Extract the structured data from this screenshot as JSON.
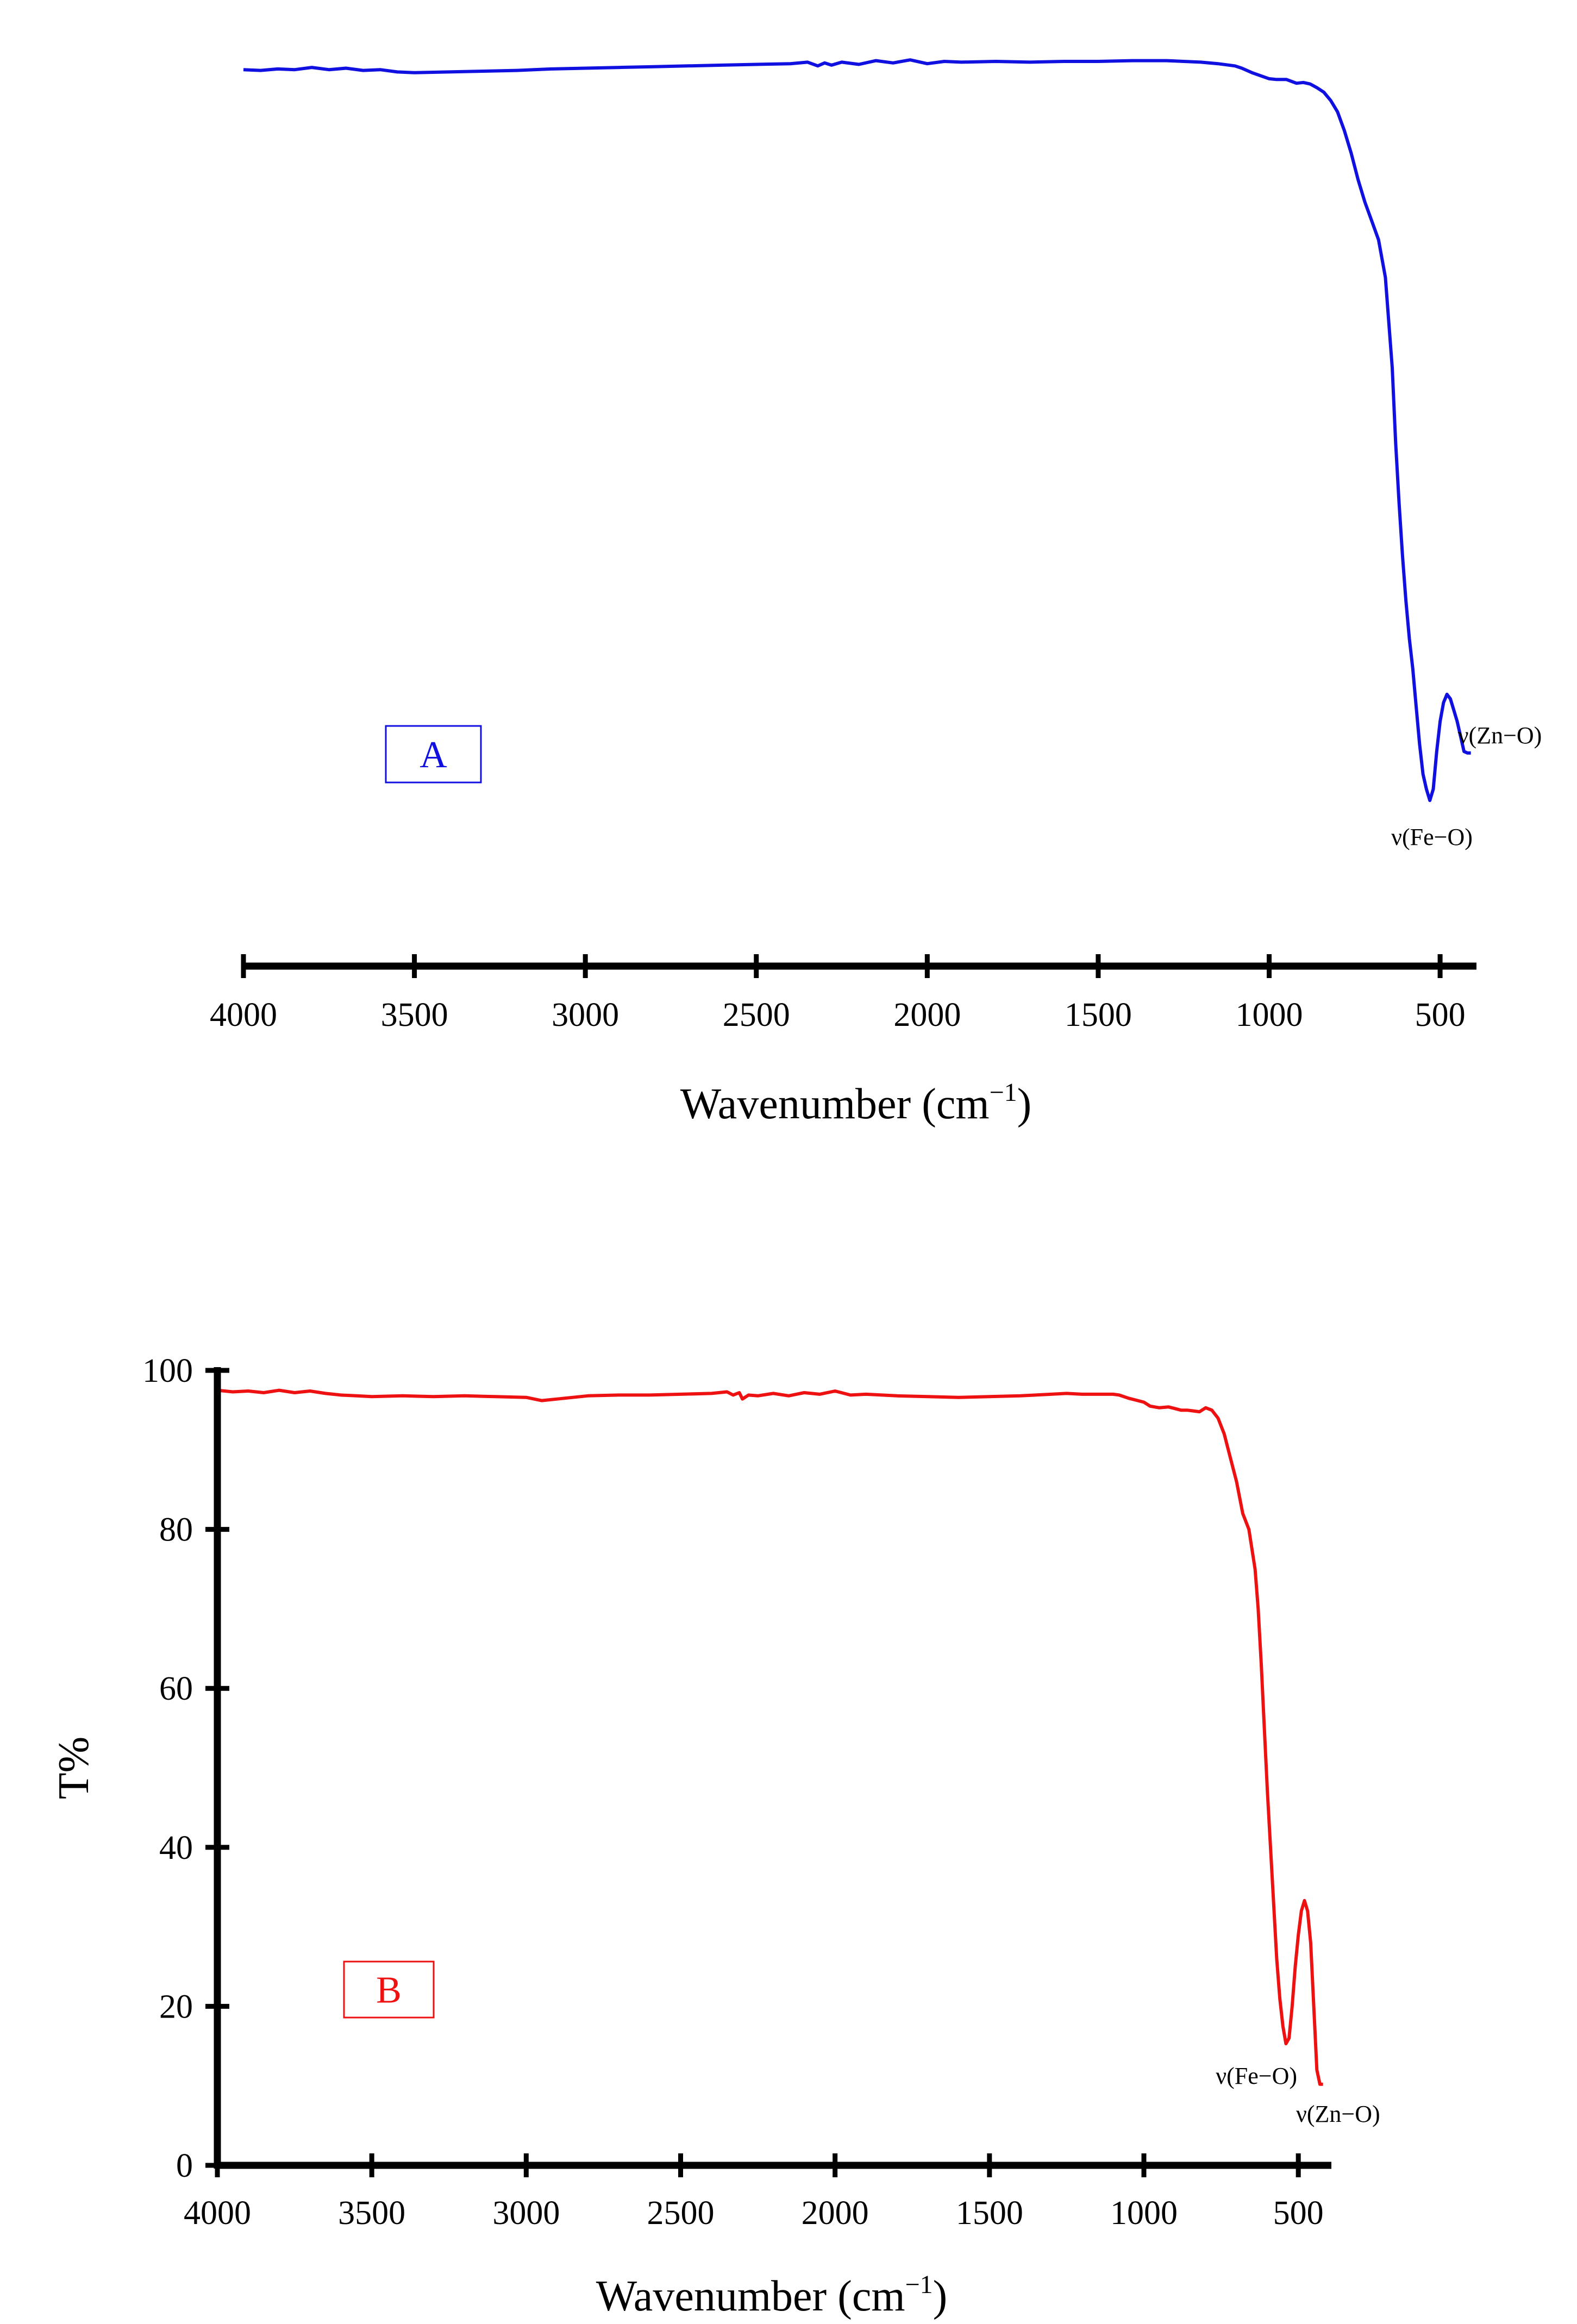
{
  "chart_data": [
    {
      "panel": "A",
      "type": "line",
      "color": "#1010e0",
      "xlabel": "Wavenumber (cm",
      "xlabel_superscript": "−1",
      "xlabel_suffix": ")",
      "ylabel": "",
      "xlim": [
        4000,
        400
      ],
      "x_reversed": true,
      "ylim": [
        0,
        100
      ],
      "y_axis_shown": false,
      "xticks": [
        4000,
        3500,
        3000,
        2500,
        2000,
        1500,
        1000,
        500
      ],
      "grid": false,
      "panel_label": "A",
      "annotations": [
        {
          "text": "ν(Fe−O)",
          "x": 525
        },
        {
          "text": "ν(Zn−O)",
          "x": 430
        }
      ],
      "series": [
        {
          "x": [
            4000,
            3950,
            3900,
            3850,
            3800,
            3750,
            3700,
            3650,
            3600,
            3550,
            3500,
            3400,
            3300,
            3200,
            3100,
            3000,
            2900,
            2800,
            2700,
            2600,
            2500,
            2400,
            2350,
            2320,
            2300,
            2280,
            2250,
            2200,
            2150,
            2100,
            2050,
            2000,
            1950,
            1900,
            1800,
            1700,
            1600,
            1500,
            1400,
            1300,
            1250,
            1200,
            1150,
            1100,
            1080,
            1050,
            1000,
            980,
            950,
            920,
            900,
            880,
            860,
            840,
            820,
            800,
            780,
            760,
            740,
            720,
            700,
            680,
            660,
            640,
            630,
            620,
            610,
            600,
            590,
            580,
            570,
            560,
            550,
            540,
            530,
            520,
            510,
            500,
            490,
            480,
            470,
            460,
            450,
            440,
            430,
            420,
            410
          ],
          "y": [
            97.6,
            97.5,
            97.7,
            97.6,
            97.9,
            97.6,
            97.8,
            97.5,
            97.6,
            97.3,
            97.2,
            97.3,
            97.4,
            97.5,
            97.7,
            97.8,
            97.9,
            98.0,
            98.1,
            98.2,
            98.3,
            98.4,
            98.6,
            98.1,
            98.5,
            98.2,
            98.6,
            98.3,
            98.8,
            98.5,
            98.9,
            98.4,
            98.7,
            98.6,
            98.7,
            98.6,
            98.7,
            98.7,
            98.8,
            98.8,
            98.7,
            98.6,
            98.4,
            98.1,
            97.8,
            97.2,
            96.4,
            96.3,
            96.3,
            95.8,
            95.9,
            95.7,
            95.2,
            94.6,
            93.5,
            92.0,
            89.5,
            86.5,
            83.0,
            80.0,
            77.5,
            75.0,
            70.0,
            58.0,
            48.0,
            40.0,
            33.0,
            27.0,
            22.0,
            18.0,
            13.0,
            8.0,
            4.0,
            2.0,
            0.5,
            2.0,
            7.0,
            11.0,
            13.5,
            14.6,
            14.0,
            12.5,
            11.0,
            9.0,
            7.0,
            6.8,
            6.8
          ]
        }
      ]
    },
    {
      "panel": "B",
      "type": "line",
      "color": "#ee1111",
      "xlabel": "Wavenumber (cm",
      "xlabel_superscript": "−1",
      "xlabel_suffix": ")",
      "ylabel": "T%",
      "xlim": [
        4000,
        400
      ],
      "x_reversed": true,
      "ylim": [
        0,
        100
      ],
      "y_axis_shown": true,
      "xticks": [
        4000,
        3500,
        3000,
        2500,
        2000,
        1500,
        1000,
        500
      ],
      "yticks": [
        0,
        20,
        40,
        60,
        80,
        100
      ],
      "grid": false,
      "panel_label": "B",
      "annotations": [
        {
          "text": "ν(Fe−O)",
          "x": 525
        },
        {
          "text": "ν(Zn−O)",
          "x": 430
        }
      ],
      "series": [
        {
          "x": [
            4000,
            3950,
            3900,
            3850,
            3800,
            3750,
            3700,
            3650,
            3600,
            3550,
            3500,
            3400,
            3300,
            3200,
            3100,
            3000,
            2950,
            2900,
            2800,
            2700,
            2600,
            2500,
            2400,
            2350,
            2330,
            2310,
            2300,
            2280,
            2250,
            2200,
            2150,
            2100,
            2050,
            2000,
            1950,
            1900,
            1800,
            1700,
            1600,
            1500,
            1400,
            1300,
            1250,
            1200,
            1150,
            1100,
            1080,
            1050,
            1000,
            980,
            950,
            920,
            900,
            880,
            860,
            840,
            820,
            800,
            780,
            760,
            740,
            720,
            700,
            680,
            660,
            640,
            630,
            620,
            610,
            600,
            590,
            580,
            570,
            560,
            550,
            540,
            530,
            520,
            510,
            500,
            490,
            480,
            470,
            460,
            450,
            440,
            430,
            420
          ],
          "y": [
            97.5,
            97.3,
            97.4,
            97.2,
            97.5,
            97.2,
            97.4,
            97.1,
            96.9,
            96.8,
            96.7,
            96.8,
            96.7,
            96.8,
            96.7,
            96.6,
            96.2,
            96.4,
            96.8,
            96.9,
            96.9,
            97.0,
            97.1,
            97.3,
            96.9,
            97.2,
            96.4,
            96.9,
            96.8,
            97.1,
            96.8,
            97.2,
            97.0,
            97.4,
            96.9,
            97.0,
            96.8,
            96.7,
            96.6,
            96.7,
            96.8,
            97.0,
            97.1,
            97.0,
            97.0,
            97.0,
            96.9,
            96.5,
            96.0,
            95.5,
            95.3,
            95.4,
            95.2,
            95.0,
            95.0,
            94.9,
            94.8,
            95.3,
            95.0,
            94.0,
            92.0,
            89.0,
            86.0,
            82.0,
            80.0,
            75.0,
            70.0,
            63.0,
            55.0,
            47.0,
            40.0,
            33.0,
            26.0,
            21.0,
            17.5,
            15.3,
            16.0,
            20.0,
            25.0,
            29.0,
            32.0,
            33.3,
            32.0,
            28.0,
            20.0,
            12.0,
            10.2,
            10.2
          ]
        }
      ]
    }
  ]
}
